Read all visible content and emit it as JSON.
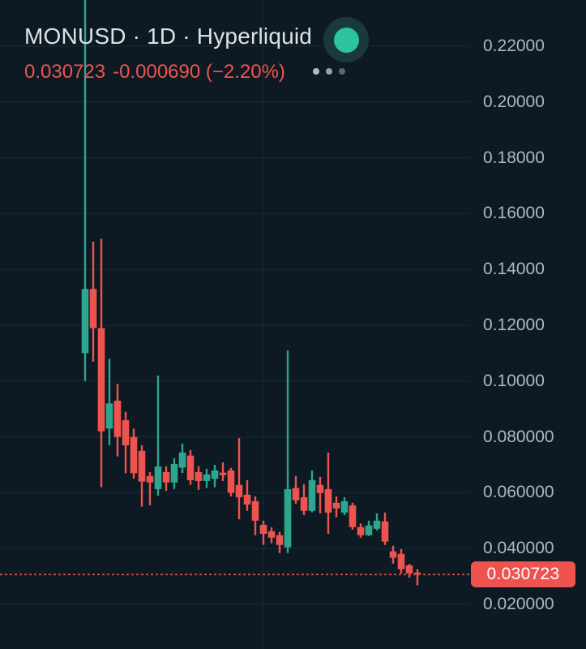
{
  "header": {
    "title": "MONUSD · 1D · Hyperliquid",
    "last_price": "0.030723",
    "change": "-0.000690 (−2.20%)",
    "more_options_icon": "three-dots",
    "status_indicator_icon": "live-green-dot"
  },
  "colors": {
    "background": "#0d1a23",
    "up_candle": "#2ea58f",
    "down_candle": "#ef5350",
    "grid": "rgba(170,195,215,0.09)",
    "axis_text": "#b0b6bd",
    "title_text": "#dde2e6",
    "price_text": "#ef5350",
    "price_line": "#c24a45",
    "badge_bg": "#ef5350",
    "badge_text": "#ffffff",
    "indicator_outer": "#19393a",
    "indicator_inner": "#2dc3a0"
  },
  "y_axis": {
    "labels": [
      {
        "text": "0.22000",
        "price": 0.22
      },
      {
        "text": "0.20000",
        "price": 0.2
      },
      {
        "text": "0.18000",
        "price": 0.18
      },
      {
        "text": "0.16000",
        "price": 0.16
      },
      {
        "text": "0.14000",
        "price": 0.14
      },
      {
        "text": "0.12000",
        "price": 0.12
      },
      {
        "text": "0.10000",
        "price": 0.1
      },
      {
        "text": "0.080000",
        "price": 0.08
      },
      {
        "text": "0.060000",
        "price": 0.06
      },
      {
        "text": "0.040000",
        "price": 0.04
      },
      {
        "text": "0.020000",
        "price": 0.02
      }
    ]
  },
  "price_line": {
    "label": "0.030723",
    "price": 0.030723
  },
  "chart_data": {
    "type": "candlestick",
    "symbol": "MONUSD",
    "interval": "1D",
    "exchange": "Hyperliquid",
    "title": "MONUSD · 1D · Hyperliquid",
    "last_close": 0.030723,
    "change_abs": -0.00069,
    "change_pct": -2.2,
    "y_axis_range_visible": [
      0.0036,
      0.2366
    ],
    "grid": true,
    "vertical_gridlines_at_candle_index": [
      22
    ],
    "note_first_candle_high_clipped_offscreen": true,
    "candles": [
      {
        "o": 0.11,
        "h": 0.245,
        "l": 0.1,
        "c": 0.133
      },
      {
        "o": 0.133,
        "h": 0.15,
        "l": 0.107,
        "c": 0.119
      },
      {
        "o": 0.119,
        "h": 0.151,
        "l": 0.062,
        "c": 0.082
      },
      {
        "o": 0.083,
        "h": 0.108,
        "l": 0.077,
        "c": 0.092
      },
      {
        "o": 0.093,
        "h": 0.099,
        "l": 0.073,
        "c": 0.08
      },
      {
        "o": 0.086,
        "h": 0.089,
        "l": 0.067,
        "c": 0.077
      },
      {
        "o": 0.08,
        "h": 0.083,
        "l": 0.065,
        "c": 0.067
      },
      {
        "o": 0.075,
        "h": 0.077,
        "l": 0.055,
        "c": 0.064
      },
      {
        "o": 0.066,
        "h": 0.0674,
        "l": 0.0555,
        "c": 0.0637
      },
      {
        "o": 0.0613,
        "h": 0.102,
        "l": 0.059,
        "c": 0.0694
      },
      {
        "o": 0.0674,
        "h": 0.0695,
        "l": 0.0607,
        "c": 0.0637
      },
      {
        "o": 0.0637,
        "h": 0.0724,
        "l": 0.0613,
        "c": 0.0703
      },
      {
        "o": 0.069,
        "h": 0.0776,
        "l": 0.0671,
        "c": 0.0744
      },
      {
        "o": 0.0733,
        "h": 0.0753,
        "l": 0.0628,
        "c": 0.0645
      },
      {
        "o": 0.0674,
        "h": 0.0695,
        "l": 0.061,
        "c": 0.0642
      },
      {
        "o": 0.0642,
        "h": 0.0686,
        "l": 0.0617,
        "c": 0.0666
      },
      {
        "o": 0.065,
        "h": 0.07,
        "l": 0.062,
        "c": 0.068
      },
      {
        "o": 0.0672,
        "h": 0.0709,
        "l": 0.0642,
        "c": 0.0663
      },
      {
        "o": 0.068,
        "h": 0.0689,
        "l": 0.0587,
        "c": 0.06
      },
      {
        "o": 0.0628,
        "h": 0.0796,
        "l": 0.0505,
        "c": 0.0584
      },
      {
        "o": 0.0593,
        "h": 0.0645,
        "l": 0.0535,
        "c": 0.0558
      },
      {
        "o": 0.057,
        "h": 0.0587,
        "l": 0.0448,
        "c": 0.05
      },
      {
        "o": 0.0485,
        "h": 0.05,
        "l": 0.0413,
        "c": 0.0453
      },
      {
        "o": 0.0462,
        "h": 0.0476,
        "l": 0.0419,
        "c": 0.0439
      },
      {
        "o": 0.0448,
        "h": 0.046,
        "l": 0.0384,
        "c": 0.0413
      },
      {
        "o": 0.0404,
        "h": 0.111,
        "l": 0.0384,
        "c": 0.0613
      },
      {
        "o": 0.0617,
        "h": 0.066,
        "l": 0.056,
        "c": 0.0573
      },
      {
        "o": 0.0584,
        "h": 0.0631,
        "l": 0.052,
        "c": 0.0535
      },
      {
        "o": 0.0535,
        "h": 0.068,
        "l": 0.053,
        "c": 0.0645
      },
      {
        "o": 0.0628,
        "h": 0.0657,
        "l": 0.0526,
        "c": 0.0599
      },
      {
        "o": 0.0613,
        "h": 0.0744,
        "l": 0.0453,
        "c": 0.0529
      },
      {
        "o": 0.0564,
        "h": 0.0587,
        "l": 0.0512,
        "c": 0.0544
      },
      {
        "o": 0.0529,
        "h": 0.0584,
        "l": 0.052,
        "c": 0.057
      },
      {
        "o": 0.0555,
        "h": 0.0564,
        "l": 0.0468,
        "c": 0.0477
      },
      {
        "o": 0.0477,
        "h": 0.049,
        "l": 0.0439,
        "c": 0.0448
      },
      {
        "o": 0.0448,
        "h": 0.05,
        "l": 0.0445,
        "c": 0.0483
      },
      {
        "o": 0.0471,
        "h": 0.0526,
        "l": 0.0465,
        "c": 0.05
      },
      {
        "o": 0.0497,
        "h": 0.0529,
        "l": 0.0413,
        "c": 0.0425
      },
      {
        "o": 0.039,
        "h": 0.041,
        "l": 0.0346,
        "c": 0.0367
      },
      {
        "o": 0.0381,
        "h": 0.0398,
        "l": 0.0311,
        "c": 0.0326
      },
      {
        "o": 0.034,
        "h": 0.0345,
        "l": 0.0296,
        "c": 0.0311
      },
      {
        "o": 0.0314,
        "h": 0.0326,
        "l": 0.0268,
        "c": 0.030723
      }
    ]
  }
}
